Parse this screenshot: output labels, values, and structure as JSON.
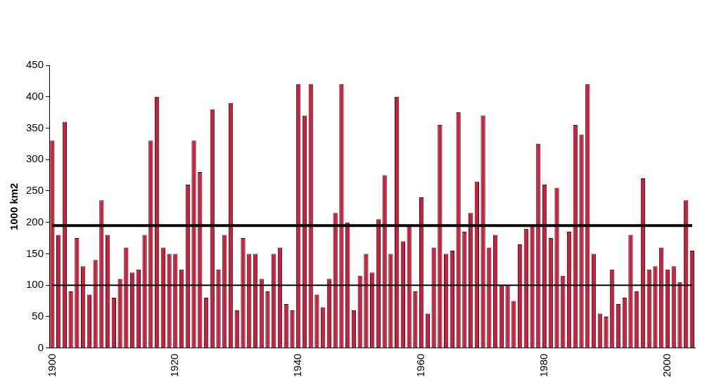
{
  "chart_data": {
    "type": "bar",
    "y_label": "1000 km2",
    "categories": [
      "1900",
      null,
      null,
      null,
      null,
      null,
      null,
      null,
      null,
      null,
      null,
      null,
      null,
      null,
      null,
      null,
      null,
      null,
      null,
      null,
      "1920",
      null,
      null,
      null,
      null,
      null,
      null,
      null,
      null,
      null,
      null,
      null,
      null,
      null,
      null,
      null,
      null,
      null,
      null,
      null,
      "1940",
      null,
      null,
      null,
      null,
      null,
      null,
      null,
      null,
      null,
      null,
      null,
      null,
      null,
      null,
      null,
      null,
      null,
      null,
      null,
      "1960",
      null,
      null,
      null,
      null,
      null,
      null,
      null,
      null,
      null,
      null,
      null,
      null,
      null,
      null,
      null,
      null,
      null,
      null,
      null,
      "1980",
      null,
      null,
      null,
      null,
      null,
      null,
      null,
      null,
      null,
      null,
      null,
      null,
      null,
      null,
      null,
      null,
      null,
      null,
      null,
      "2000",
      null,
      null,
      null,
      null
    ],
    "series": [
      {
        "type": "bar",
        "color": "#c8203f",
        "values": [
          330,
          180,
          360,
          90,
          175,
          130,
          85,
          140,
          235,
          180,
          80,
          110,
          160,
          120,
          125,
          180,
          330,
          400,
          160,
          150,
          150,
          125,
          260,
          330,
          280,
          80,
          380,
          125,
          180,
          390,
          60,
          175,
          150,
          150,
          110,
          90,
          150,
          160,
          70,
          60,
          420,
          370,
          420,
          85,
          65,
          110,
          215,
          420,
          200,
          60,
          115,
          150,
          120,
          205,
          275,
          150,
          400,
          170,
          195,
          90,
          240,
          55,
          160,
          355,
          150,
          155,
          375,
          185,
          215,
          265,
          370,
          160,
          180,
          100,
          100,
          75,
          165,
          190,
          195,
          325,
          260,
          175,
          255,
          115,
          185,
          355,
          340,
          420,
          150,
          55,
          50,
          125,
          70,
          80,
          180,
          90,
          270,
          125,
          130,
          160,
          125,
          130,
          105,
          235,
          155
        ]
      },
      {
        "type": "line",
        "color": "#000000",
        "line_style": "solid",
        "values": [
          195,
          195,
          195,
          195,
          195,
          195,
          195,
          195,
          195,
          195,
          195,
          195,
          195,
          195,
          195,
          195,
          195,
          195,
          195,
          195,
          195,
          195,
          195,
          195,
          195,
          195,
          195,
          195,
          195,
          195,
          195,
          195,
          195,
          195,
          195,
          195,
          195,
          195,
          195,
          195,
          195,
          195,
          195,
          195,
          195,
          195,
          195,
          195,
          195,
          195,
          195,
          195,
          195,
          195,
          195,
          195,
          195,
          195,
          195,
          195,
          195,
          195,
          195,
          195,
          195,
          195,
          195,
          195,
          195,
          195,
          195,
          195,
          195,
          195,
          195,
          195,
          195,
          195,
          195,
          195,
          195,
          195,
          195,
          195,
          195,
          195,
          195,
          195,
          195,
          195,
          195,
          195,
          195,
          195,
          195,
          195,
          195,
          195,
          195,
          195,
          195,
          195,
          195,
          195,
          195
        ]
      },
      {
        "type": "line",
        "color": "#000000",
        "line_style": "solid",
        "values": [
          100,
          100,
          100,
          100,
          100,
          100,
          100,
          100,
          100,
          100,
          100,
          100,
          100,
          100,
          100,
          100,
          100,
          100,
          100,
          100,
          100,
          100,
          100,
          100,
          100,
          100,
          100,
          100,
          100,
          100,
          100,
          100,
          100,
          100,
          100,
          100,
          100,
          100,
          100,
          100,
          100,
          100,
          100,
          100,
          100,
          100,
          100,
          100,
          100,
          100,
          100,
          100,
          100,
          100,
          100,
          100,
          100,
          100,
          100,
          100,
          100,
          100,
          100,
          100,
          100,
          100,
          100,
          100,
          100,
          100,
          100,
          100,
          100,
          100,
          100,
          100,
          100,
          100,
          100,
          100,
          100,
          100,
          100,
          100,
          100,
          100,
          100,
          100,
          100,
          100,
          100,
          100,
          100,
          100,
          100,
          100,
          100,
          100,
          100,
          100,
          100,
          100,
          100,
          100,
          100
        ]
      }
    ],
    "ylim": [
      0,
      450
    ],
    "yticks": [
      0,
      50,
      100,
      150,
      200,
      250,
      300,
      350,
      400,
      450
    ],
    "grid": false
  }
}
